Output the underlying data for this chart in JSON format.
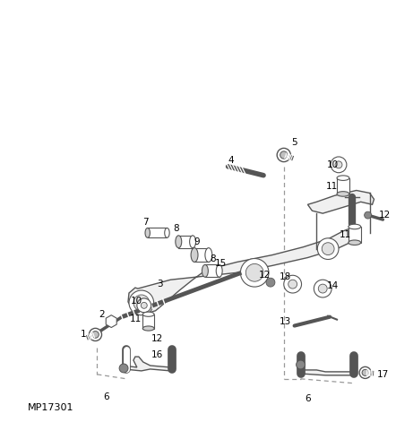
{
  "background_color": "#ffffff",
  "line_color": "#555555",
  "text_color": "#000000",
  "label_fontsize": 7.5,
  "part_number_text": "MP17301",
  "part_number_fontsize": 8
}
